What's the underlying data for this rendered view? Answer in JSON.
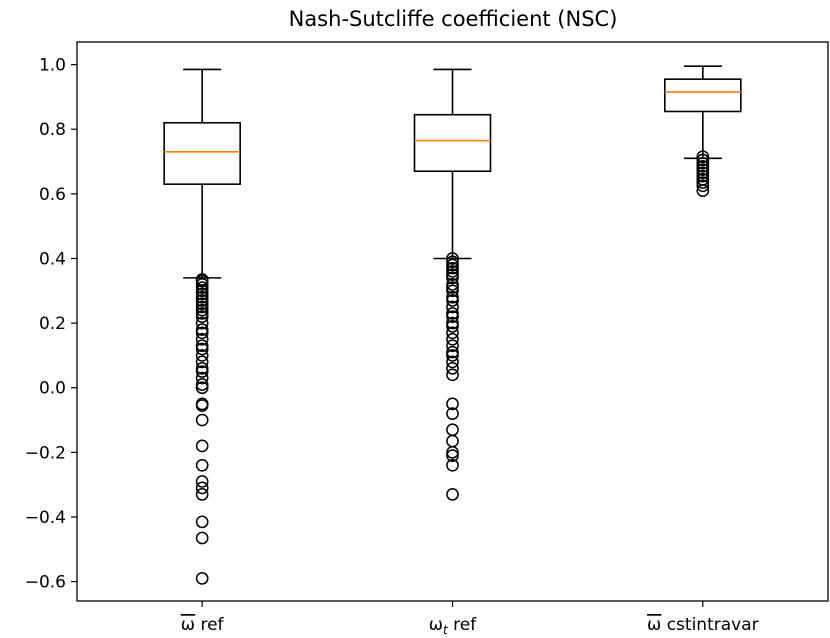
{
  "chart_data": {
    "type": "box",
    "title": "Nash-Sutcliffe coefficient (NSC)",
    "xlabel": "",
    "ylabel": "",
    "ylim": [
      -0.66,
      1.07
    ],
    "yticks": [
      -0.6,
      -0.4,
      -0.2,
      0.0,
      0.2,
      0.4,
      0.6,
      0.8,
      1.0
    ],
    "ytick_labels": [
      "−0.6",
      "−0.4",
      "−0.2",
      "0.0",
      "0.2",
      "0.4",
      "0.6",
      "0.8",
      "1.0"
    ],
    "grid": false,
    "colors": {
      "box": "#000000",
      "median": "#ff7f0e",
      "outlier": "#000000"
    },
    "boxes": [
      {
        "label": "ω̅ ref",
        "label_base": "ω",
        "label_overline": true,
        "label_subscript": "",
        "label_suffix": " ref",
        "whisker_low": 0.34,
        "q1": 0.63,
        "median": 0.73,
        "q3": 0.82,
        "whisker_high": 0.985,
        "outliers": [
          0.335,
          0.33,
          0.32,
          0.31,
          0.3,
          0.29,
          0.28,
          0.27,
          0.26,
          0.25,
          0.24,
          0.23,
          0.22,
          0.2,
          0.18,
          0.17,
          0.15,
          0.13,
          0.12,
          0.1,
          0.08,
          0.06,
          0.05,
          0.03,
          0.01,
          0.0,
          -0.05,
          -0.055,
          -0.1,
          -0.18,
          -0.24,
          -0.29,
          -0.31,
          -0.33,
          -0.415,
          -0.465,
          -0.59
        ]
      },
      {
        "label": "ωt ref",
        "label_base": "ω",
        "label_overline": false,
        "label_subscript": "t",
        "label_suffix": " ref",
        "whisker_low": 0.4,
        "q1": 0.67,
        "median": 0.765,
        "q3": 0.845,
        "whisker_high": 0.985,
        "outliers": [
          0.4,
          0.39,
          0.38,
          0.37,
          0.36,
          0.35,
          0.34,
          0.32,
          0.31,
          0.3,
          0.28,
          0.27,
          0.25,
          0.23,
          0.22,
          0.2,
          0.19,
          0.17,
          0.15,
          0.13,
          0.11,
          0.1,
          0.08,
          0.06,
          0.04,
          -0.05,
          -0.08,
          -0.13,
          -0.165,
          -0.2,
          -0.21,
          -0.24,
          -0.33
        ]
      },
      {
        "label": "ω̅ cstintravar",
        "label_base": "ω",
        "label_overline": true,
        "label_subscript": "",
        "label_suffix": " cstintravar",
        "whisker_low": 0.71,
        "q1": 0.855,
        "median": 0.915,
        "q3": 0.955,
        "whisker_high": 0.995,
        "outliers": [
          0.715,
          0.705,
          0.695,
          0.685,
          0.675,
          0.665,
          0.655,
          0.645,
          0.635,
          0.625,
          0.61
        ]
      }
    ]
  }
}
